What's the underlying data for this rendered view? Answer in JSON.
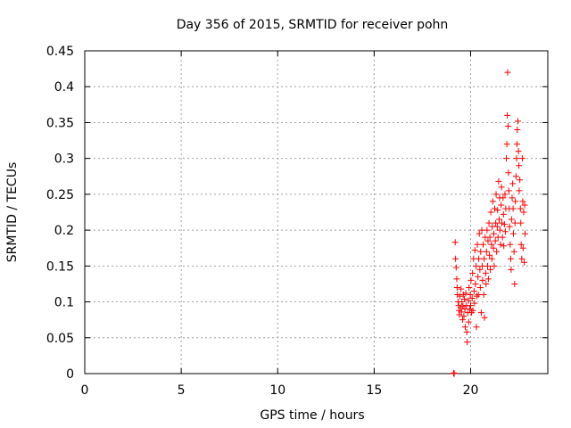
{
  "chart_data": {
    "type": "scatter",
    "title": "Day 356 of 2015, SRMTID for receiver pohn",
    "xlabel": "GPS time / hours",
    "ylabel": "SRMTID / TECUs",
    "xlim": [
      0,
      24
    ],
    "ylim": [
      0,
      0.45
    ],
    "xticks": [
      0,
      5,
      10,
      15,
      20
    ],
    "xtick_labels": [
      "0",
      "5",
      "10",
      "15",
      "20"
    ],
    "yticks": [
      0,
      0.05,
      0.1,
      0.15,
      0.2,
      0.25,
      0.3,
      0.35,
      0.4,
      0.45
    ],
    "ytick_labels": [
      "0",
      "0.05",
      "0.1",
      "0.15",
      "0.2",
      "0.25",
      "0.3",
      "0.35",
      "0.4",
      "0.45"
    ],
    "grid": true,
    "marker": "+",
    "color": "#ff0000",
    "series": [
      {
        "name": "SRMTID",
        "points": [
          [
            19.12,
            0.0
          ],
          [
            19.15,
            0.0
          ],
          [
            19.13,
            0.001
          ],
          [
            19.2,
            0.183
          ],
          [
            19.22,
            0.16
          ],
          [
            19.25,
            0.148
          ],
          [
            19.28,
            0.132
          ],
          [
            19.3,
            0.12
          ],
          [
            19.32,
            0.11
          ],
          [
            19.35,
            0.1
          ],
          [
            19.38,
            0.095
          ],
          [
            19.4,
            0.088
          ],
          [
            19.42,
            0.082
          ],
          [
            19.45,
            0.108
          ],
          [
            19.48,
            0.092
          ],
          [
            19.5,
            0.118
          ],
          [
            19.52,
            0.086
          ],
          [
            19.55,
            0.1
          ],
          [
            19.58,
            0.075
          ],
          [
            19.6,
            0.094
          ],
          [
            19.62,
            0.11
          ],
          [
            19.65,
            0.08
          ],
          [
            19.68,
            0.104
          ],
          [
            19.7,
            0.09
          ],
          [
            19.72,
            0.065
          ],
          [
            19.75,
            0.112
          ],
          [
            19.78,
            0.095
          ],
          [
            19.8,
            0.058
          ],
          [
            19.82,
            0.044
          ],
          [
            19.85,
            0.085
          ],
          [
            19.88,
            0.102
          ],
          [
            19.9,
            0.072
          ],
          [
            19.92,
            0.12
          ],
          [
            19.95,
            0.09
          ],
          [
            19.98,
            0.11
          ],
          [
            20.0,
            0.095
          ],
          [
            20.02,
            0.13
          ],
          [
            20.05,
            0.085
          ],
          [
            20.08,
            0.105
          ],
          [
            20.1,
            0.14
          ],
          [
            20.12,
            0.088
          ],
          [
            20.15,
            0.16
          ],
          [
            20.18,
            0.115
          ],
          [
            20.2,
            0.098
          ],
          [
            20.22,
            0.172
          ],
          [
            20.25,
            0.125
          ],
          [
            20.28,
            0.15
          ],
          [
            20.3,
            0.065
          ],
          [
            20.32,
            0.108
          ],
          [
            20.35,
            0.18
          ],
          [
            20.38,
            0.135
          ],
          [
            20.4,
            0.11
          ],
          [
            20.42,
            0.16
          ],
          [
            20.45,
            0.195
          ],
          [
            20.48,
            0.145
          ],
          [
            20.5,
            0.12
          ],
          [
            20.52,
            0.17
          ],
          [
            20.55,
            0.085
          ],
          [
            20.58,
            0.2
          ],
          [
            20.6,
            0.15
          ],
          [
            20.62,
            0.13
          ],
          [
            20.65,
            0.18
          ],
          [
            20.68,
            0.11
          ],
          [
            20.7,
            0.16
          ],
          [
            20.72,
            0.078
          ],
          [
            20.75,
            0.19
          ],
          [
            20.78,
            0.14
          ],
          [
            20.8,
            0.125
          ],
          [
            20.82,
            0.17
          ],
          [
            20.85,
            0.2
          ],
          [
            20.88,
            0.15
          ],
          [
            20.9,
            0.185
          ],
          [
            20.92,
            0.132
          ],
          [
            20.95,
            0.21
          ],
          [
            20.98,
            0.165
          ],
          [
            21.0,
            0.19
          ],
          [
            21.02,
            0.145
          ],
          [
            21.05,
            0.225
          ],
          [
            21.08,
            0.18
          ],
          [
            21.1,
            0.16
          ],
          [
            21.12,
            0.205
          ],
          [
            21.15,
            0.24
          ],
          [
            21.18,
            0.175
          ],
          [
            21.2,
            0.195
          ],
          [
            21.22,
            0.15
          ],
          [
            21.25,
            0.23
          ],
          [
            21.28,
            0.185
          ],
          [
            21.3,
            0.21
          ],
          [
            21.32,
            0.25
          ],
          [
            21.35,
            0.17
          ],
          [
            21.38,
            0.205
          ],
          [
            21.4,
            0.228
          ],
          [
            21.42,
            0.19
          ],
          [
            21.45,
            0.268
          ],
          [
            21.48,
            0.215
          ],
          [
            21.5,
            0.245
          ],
          [
            21.52,
            0.2
          ],
          [
            21.55,
            0.18
          ],
          [
            21.58,
            0.235
          ],
          [
            21.6,
            0.26
          ],
          [
            21.62,
            0.21
          ],
          [
            21.65,
            0.19
          ],
          [
            21.68,
            0.245
          ],
          [
            21.7,
            0.222
          ],
          [
            21.72,
            0.178
          ],
          [
            21.75,
            0.208
          ],
          [
            21.78,
            0.25
          ],
          [
            21.8,
            0.198
          ],
          [
            21.82,
            0.23
          ],
          [
            21.85,
            0.3
          ],
          [
            21.88,
            0.32
          ],
          [
            21.9,
            0.36
          ],
          [
            21.92,
            0.42
          ],
          [
            21.94,
            0.345
          ],
          [
            21.96,
            0.28
          ],
          [
            21.98,
            0.255
          ],
          [
            22.0,
            0.23
          ],
          [
            22.02,
            0.205
          ],
          [
            22.05,
            0.18
          ],
          [
            22.08,
            0.16
          ],
          [
            22.1,
            0.145
          ],
          [
            22.12,
            0.215
          ],
          [
            22.15,
            0.245
          ],
          [
            22.18,
            0.265
          ],
          [
            22.2,
            0.23
          ],
          [
            22.22,
            0.195
          ],
          [
            22.25,
            0.17
          ],
          [
            22.28,
            0.125
          ],
          [
            22.3,
            0.21
          ],
          [
            22.32,
            0.24
          ],
          [
            22.35,
            0.275
          ],
          [
            22.38,
            0.3
          ],
          [
            22.4,
            0.32
          ],
          [
            22.42,
            0.34
          ],
          [
            22.45,
            0.352
          ],
          [
            22.48,
            0.31
          ],
          [
            22.5,
            0.29
          ],
          [
            22.52,
            0.255
          ],
          [
            22.55,
            0.27
          ],
          [
            22.58,
            0.23
          ],
          [
            22.6,
            0.21
          ],
          [
            22.62,
            0.18
          ],
          [
            22.65,
            0.16
          ],
          [
            22.68,
            0.3
          ],
          [
            22.7,
            0.24
          ],
          [
            22.72,
            0.175
          ],
          [
            22.75,
            0.225
          ],
          [
            22.78,
            0.155
          ],
          [
            22.8,
            0.235
          ],
          [
            22.82,
            0.195
          ]
        ]
      }
    ]
  }
}
